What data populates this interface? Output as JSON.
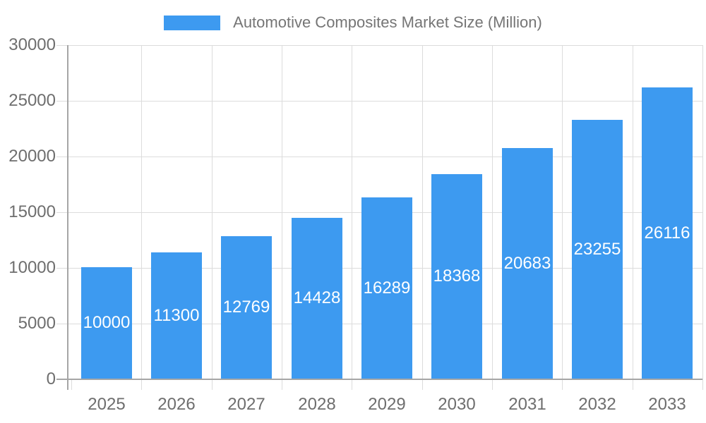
{
  "legend": {
    "label": "Automotive Composites Market Size (Million)"
  },
  "chart_data": {
    "type": "bar",
    "title": "Automotive Composites Market Size (Million)",
    "categories": [
      "2025",
      "2026",
      "2027",
      "2028",
      "2029",
      "2030",
      "2031",
      "2032",
      "2033"
    ],
    "values": [
      10000,
      11300,
      12769,
      14428,
      16289,
      18368,
      20683,
      23255,
      26116
    ],
    "value_labels": [
      "10000",
      "11300",
      "12769",
      "14428",
      "16289",
      "18368",
      "20683",
      "23255",
      "26116"
    ],
    "xlabel": "",
    "ylabel": "",
    "ylim": [
      0,
      30000
    ],
    "yticks": [
      0,
      5000,
      10000,
      15000,
      20000,
      25000,
      30000
    ],
    "grid": true,
    "legend_position": "top",
    "colors": {
      "bar": "#3d9af0",
      "value_label": "#ffffff",
      "grid": "#dcdcdc",
      "axis": "#a6a6a6",
      "tick_text": "#6e6e6e",
      "title_text": "#757575",
      "background": "#ffffff"
    }
  }
}
